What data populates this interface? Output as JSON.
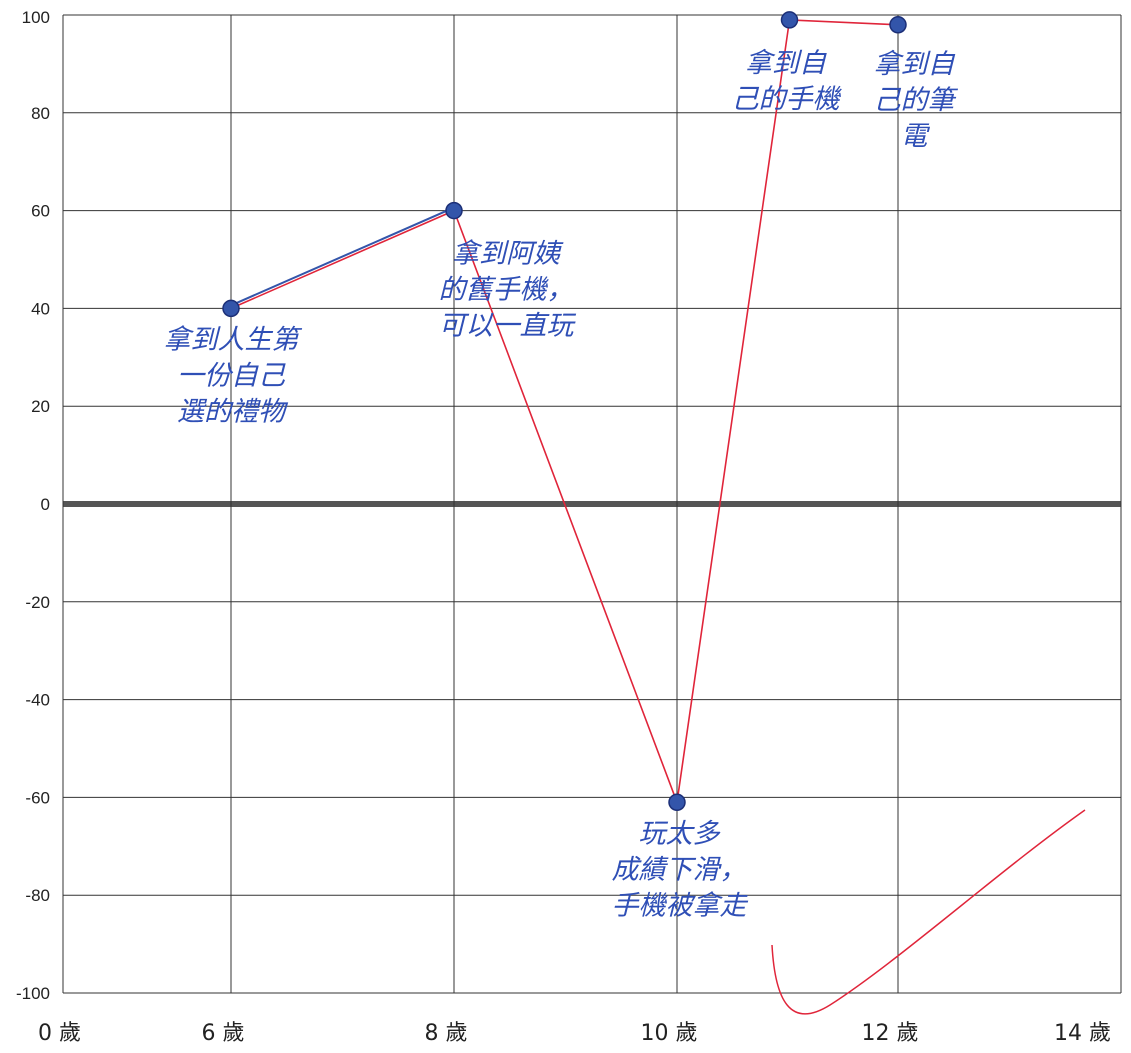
{
  "chart_data": {
    "type": "line",
    "title": "",
    "xlabel": "",
    "ylabel": "",
    "grid": true,
    "ylim": [
      -100,
      100
    ],
    "y_ticks": [
      "100",
      "80",
      "60",
      "40",
      "20",
      "0",
      "-20",
      "-40",
      "-60",
      "-80",
      "-100"
    ],
    "x_ticks": [
      "0 歲",
      "6 歲",
      "8 歲",
      "10 歲",
      "12 歲",
      "14 歲"
    ],
    "series": [
      {
        "values": [
          {
            "x": "6 歲",
            "y": 40
          },
          {
            "x": "8 歲",
            "y": 60
          },
          {
            "x": "10 歲",
            "y": -61
          },
          {
            "x": "11 歲",
            "y": 99
          },
          {
            "x": "12 歲",
            "y": 98
          }
        ]
      }
    ],
    "annotations": [
      {
        "text_lines": [
          "拿到人生第",
          "一份自己",
          "選的禮物"
        ],
        "point": 0
      },
      {
        "text_lines": [
          "拿到阿姨",
          "的舊手機，",
          "可以一直玩"
        ],
        "point": 1
      },
      {
        "text_lines": [
          "玩太多",
          "成績下滑，",
          "手機被拿走"
        ],
        "point": 2
      },
      {
        "text_lines": [
          "拿到自",
          "己的手機"
        ],
        "point": 3
      },
      {
        "text_lines": [
          "拿到自",
          "己的筆",
          "電"
        ],
        "point": 4
      }
    ],
    "colors": {
      "line": "#e0253a",
      "marker": "#3355aa",
      "handwriting": "#2f4fb6",
      "grid": "#333333",
      "zero_line": "#555555"
    }
  }
}
